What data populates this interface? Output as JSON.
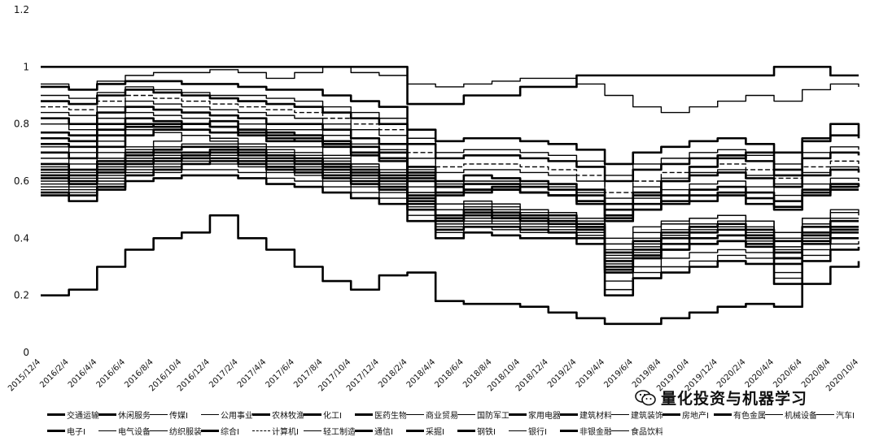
{
  "chart_data": {
    "type": "line",
    "title": "",
    "xlabel": "",
    "ylabel": "",
    "ylim": [
      0,
      1.2
    ],
    "y_ticks": [
      "0",
      "0.2",
      "0.4",
      "0.6",
      "0.8",
      "1",
      "1.2"
    ],
    "x_ticks": [
      "2015/12/4",
      "2016/2/4",
      "2016/4/4",
      "2016/6/4",
      "2016/8/4",
      "2016/10/4",
      "2016/12/4",
      "2017/2/4",
      "2017/4/4",
      "2017/6/4",
      "2017/8/4",
      "2017/10/4",
      "2017/12/4",
      "2018/2/4",
      "2018/4/4",
      "2018/6/4",
      "2018/8/4",
      "2018/10/4",
      "2018/12/4",
      "2019/2/4",
      "2019/4/4",
      "2019/6/4",
      "2019/8/4",
      "2019/10/4",
      "2019/12/4",
      "2020/2/4",
      "2020/4/4",
      "2020/6/4",
      "2020/8/4",
      "2020/10/4"
    ],
    "grid": false,
    "legend_position": "bottom",
    "series": [
      {
        "name": "交通运输I",
        "values": [
          0.75,
          0.74,
          0.78,
          0.8,
          0.79,
          0.78,
          0.77,
          0.76,
          0.74,
          0.75,
          0.73,
          0.7,
          0.68,
          0.62,
          0.58,
          0.56,
          0.57,
          0.56,
          0.55,
          0.52,
          0.47,
          0.5,
          0.52,
          0.53,
          0.55,
          0.52,
          0.5,
          0.56,
          0.58,
          0.58
        ]
      },
      {
        "name": "休闲服务I",
        "values": [
          0.7,
          0.68,
          0.72,
          0.76,
          0.78,
          0.8,
          0.81,
          0.78,
          0.77,
          0.76,
          0.73,
          0.7,
          0.68,
          0.6,
          0.55,
          0.57,
          0.58,
          0.56,
          0.55,
          0.53,
          0.5,
          0.55,
          0.6,
          0.65,
          0.68,
          0.7,
          0.62,
          0.75,
          0.8,
          0.76
        ]
      },
      {
        "name": "传媒I",
        "values": [
          0.72,
          0.7,
          0.74,
          0.78,
          0.77,
          0.76,
          0.75,
          0.73,
          0.72,
          0.72,
          0.69,
          0.66,
          0.64,
          0.58,
          0.52,
          0.53,
          0.52,
          0.5,
          0.49,
          0.47,
          0.4,
          0.44,
          0.46,
          0.47,
          0.48,
          0.46,
          0.42,
          0.47,
          0.5,
          0.48
        ]
      },
      {
        "name": "公用事业I",
        "values": [
          0.68,
          0.66,
          0.7,
          0.72,
          0.74,
          0.76,
          0.74,
          0.73,
          0.71,
          0.7,
          0.68,
          0.66,
          0.63,
          0.56,
          0.5,
          0.51,
          0.5,
          0.49,
          0.48,
          0.46,
          0.34,
          0.38,
          0.41,
          0.43,
          0.44,
          0.42,
          0.36,
          0.44,
          0.46,
          0.46
        ]
      },
      {
        "name": "农林牧渔I",
        "values": [
          0.66,
          0.64,
          0.67,
          0.7,
          0.71,
          0.72,
          0.72,
          0.71,
          0.69,
          0.68,
          0.66,
          0.64,
          0.62,
          0.55,
          0.48,
          0.5,
          0.49,
          0.48,
          0.48,
          0.45,
          0.32,
          0.36,
          0.4,
          0.42,
          0.43,
          0.41,
          0.35,
          0.42,
          0.44,
          0.44
        ]
      },
      {
        "name": "化工I",
        "values": [
          0.64,
          0.62,
          0.66,
          0.69,
          0.7,
          0.7,
          0.71,
          0.7,
          0.68,
          0.67,
          0.65,
          0.63,
          0.61,
          0.54,
          0.47,
          0.49,
          0.48,
          0.47,
          0.46,
          0.44,
          0.3,
          0.34,
          0.38,
          0.4,
          0.41,
          0.4,
          0.33,
          0.41,
          0.43,
          0.43
        ]
      },
      {
        "name": "医药生物I",
        "values": [
          0.62,
          0.6,
          0.64,
          0.67,
          0.68,
          0.69,
          0.7,
          0.69,
          0.67,
          0.66,
          0.64,
          0.62,
          0.6,
          0.53,
          0.46,
          0.48,
          0.47,
          0.46,
          0.45,
          0.43,
          0.28,
          0.33,
          0.36,
          0.38,
          0.39,
          0.38,
          0.31,
          0.39,
          0.42,
          0.42
        ]
      },
      {
        "name": "商业贸易I",
        "values": [
          0.6,
          0.58,
          0.62,
          0.65,
          0.66,
          0.68,
          0.69,
          0.68,
          0.66,
          0.65,
          0.63,
          0.61,
          0.59,
          0.52,
          0.45,
          0.47,
          0.46,
          0.45,
          0.44,
          0.42,
          0.25,
          0.3,
          0.33,
          0.35,
          0.36,
          0.35,
          0.28,
          0.36,
          0.4,
          0.4
        ]
      },
      {
        "name": "国防军工I",
        "values": [
          0.58,
          0.56,
          0.6,
          0.63,
          0.65,
          0.67,
          0.68,
          0.67,
          0.65,
          0.64,
          0.62,
          0.6,
          0.58,
          0.51,
          0.44,
          0.45,
          0.45,
          0.44,
          0.43,
          0.41,
          0.22,
          0.28,
          0.3,
          0.32,
          0.34,
          0.33,
          0.26,
          0.34,
          0.38,
          0.39
        ]
      },
      {
        "name": "家用电器I",
        "values": [
          0.56,
          0.55,
          0.58,
          0.62,
          0.64,
          0.66,
          0.67,
          0.66,
          0.64,
          0.63,
          0.61,
          0.59,
          0.57,
          0.5,
          0.43,
          0.44,
          0.44,
          0.43,
          0.42,
          0.4,
          0.2,
          0.26,
          0.28,
          0.3,
          0.32,
          0.31,
          0.24,
          0.32,
          0.36,
          0.37
        ]
      },
      {
        "name": "建筑材料I",
        "values": [
          0.82,
          0.8,
          0.84,
          0.86,
          0.85,
          0.84,
          0.83,
          0.82,
          0.8,
          0.8,
          0.78,
          0.75,
          0.73,
          0.65,
          0.6,
          0.62,
          0.61,
          0.6,
          0.59,
          0.57,
          0.52,
          0.56,
          0.6,
          0.62,
          0.63,
          0.61,
          0.58,
          0.62,
          0.64,
          0.63
        ]
      },
      {
        "name": "建筑装饰I",
        "values": [
          0.8,
          0.78,
          0.82,
          0.84,
          0.83,
          0.82,
          0.81,
          0.8,
          0.78,
          0.78,
          0.76,
          0.73,
          0.71,
          0.64,
          0.59,
          0.6,
          0.6,
          0.59,
          0.58,
          0.56,
          0.5,
          0.54,
          0.57,
          0.59,
          0.6,
          0.58,
          0.55,
          0.59,
          0.61,
          0.6
        ]
      },
      {
        "name": "房地产I",
        "values": [
          0.77,
          0.76,
          0.8,
          0.82,
          0.81,
          0.8,
          0.79,
          0.78,
          0.76,
          0.76,
          0.74,
          0.72,
          0.7,
          0.63,
          0.58,
          0.59,
          0.59,
          0.58,
          0.57,
          0.55,
          0.48,
          0.52,
          0.55,
          0.57,
          0.58,
          0.56,
          0.53,
          0.57,
          0.59,
          0.58
        ]
      },
      {
        "name": "有色金属I",
        "values": [
          0.73,
          0.72,
          0.76,
          0.79,
          0.8,
          0.8,
          0.79,
          0.77,
          0.75,
          0.74,
          0.72,
          0.69,
          0.67,
          0.61,
          0.56,
          0.57,
          0.57,
          0.56,
          0.55,
          0.53,
          0.46,
          0.5,
          0.53,
          0.55,
          0.56,
          0.54,
          0.51,
          0.55,
          0.57,
          0.57
        ]
      },
      {
        "name": "机械设备I",
        "values": [
          0.65,
          0.63,
          0.68,
          0.71,
          0.72,
          0.73,
          0.73,
          0.72,
          0.7,
          0.69,
          0.67,
          0.65,
          0.63,
          0.56,
          0.5,
          0.52,
          0.51,
          0.5,
          0.49,
          0.47,
          0.38,
          0.42,
          0.45,
          0.47,
          0.48,
          0.46,
          0.42,
          0.47,
          0.49,
          0.49
        ]
      },
      {
        "name": "汽车I",
        "values": [
          0.63,
          0.61,
          0.65,
          0.68,
          0.69,
          0.7,
          0.7,
          0.69,
          0.67,
          0.66,
          0.64,
          0.62,
          0.6,
          0.54,
          0.48,
          0.5,
          0.49,
          0.48,
          0.47,
          0.45,
          0.36,
          0.4,
          0.43,
          0.45,
          0.46,
          0.44,
          0.4,
          0.45,
          0.47,
          0.47
        ]
      },
      {
        "name": "电子I",
        "values": [
          0.61,
          0.59,
          0.63,
          0.66,
          0.67,
          0.68,
          0.68,
          0.67,
          0.65,
          0.64,
          0.62,
          0.6,
          0.58,
          0.52,
          0.46,
          0.48,
          0.47,
          0.46,
          0.46,
          0.44,
          0.35,
          0.39,
          0.42,
          0.44,
          0.45,
          0.43,
          0.39,
          0.44,
          0.46,
          0.46
        ]
      },
      {
        "name": "电气设备I",
        "values": [
          0.59,
          0.57,
          0.61,
          0.64,
          0.65,
          0.66,
          0.66,
          0.65,
          0.63,
          0.62,
          0.6,
          0.58,
          0.56,
          0.5,
          0.44,
          0.46,
          0.45,
          0.44,
          0.44,
          0.42,
          0.33,
          0.37,
          0.4,
          0.42,
          0.43,
          0.41,
          0.37,
          0.42,
          0.44,
          0.44
        ]
      },
      {
        "name": "纺织服装I",
        "values": [
          0.57,
          0.55,
          0.59,
          0.62,
          0.63,
          0.64,
          0.64,
          0.63,
          0.61,
          0.6,
          0.58,
          0.56,
          0.54,
          0.48,
          0.42,
          0.44,
          0.43,
          0.42,
          0.42,
          0.4,
          0.31,
          0.35,
          0.38,
          0.4,
          0.41,
          0.39,
          0.35,
          0.4,
          0.42,
          0.42
        ]
      },
      {
        "name": "综合I",
        "values": [
          0.55,
          0.53,
          0.57,
          0.6,
          0.61,
          0.62,
          0.62,
          0.61,
          0.59,
          0.58,
          0.56,
          0.54,
          0.52,
          0.46,
          0.4,
          0.42,
          0.41,
          0.4,
          0.4,
          0.38,
          0.29,
          0.33,
          0.36,
          0.38,
          0.39,
          0.37,
          0.33,
          0.38,
          0.4,
          0.4
        ]
      },
      {
        "name": "计算机I",
        "values": [
          0.86,
          0.85,
          0.88,
          0.9,
          0.89,
          0.88,
          0.87,
          0.86,
          0.85,
          0.84,
          0.82,
          0.8,
          0.78,
          0.7,
          0.65,
          0.66,
          0.66,
          0.65,
          0.64,
          0.62,
          0.56,
          0.6,
          0.63,
          0.65,
          0.66,
          0.64,
          0.61,
          0.65,
          0.67,
          0.66
        ]
      },
      {
        "name": "轻工制造I",
        "values": [
          0.84,
          0.83,
          0.86,
          0.88,
          0.87,
          0.86,
          0.85,
          0.84,
          0.83,
          0.82,
          0.8,
          0.78,
          0.76,
          0.68,
          0.63,
          0.64,
          0.64,
          0.63,
          0.62,
          0.6,
          0.54,
          0.58,
          0.61,
          0.63,
          0.64,
          0.62,
          0.59,
          0.63,
          0.65,
          0.64
        ]
      },
      {
        "name": "通信I",
        "values": [
          0.93,
          0.92,
          0.94,
          0.95,
          0.95,
          0.94,
          0.94,
          0.93,
          0.92,
          0.92,
          0.9,
          0.88,
          0.86,
          0.78,
          0.74,
          0.75,
          0.75,
          0.74,
          0.73,
          0.71,
          0.66,
          0.7,
          0.72,
          0.74,
          0.75,
          0.73,
          0.7,
          0.74,
          0.76,
          0.75
        ]
      },
      {
        "name": "采掘I",
        "values": [
          0.88,
          0.87,
          0.9,
          0.92,
          0.91,
          0.9,
          0.89,
          0.88,
          0.87,
          0.86,
          0.84,
          0.82,
          0.8,
          0.73,
          0.68,
          0.69,
          0.69,
          0.68,
          0.67,
          0.65,
          0.6,
          0.64,
          0.66,
          0.68,
          0.69,
          0.67,
          0.64,
          0.68,
          0.7,
          0.69
        ]
      },
      {
        "name": "钢铁I",
        "values": [
          1.0,
          1.0,
          1.0,
          1.0,
          1.0,
          1.0,
          1.0,
          1.0,
          1.0,
          1.0,
          1.0,
          1.0,
          1.0,
          0.87,
          0.87,
          0.9,
          0.9,
          0.93,
          0.93,
          0.97,
          0.97,
          0.97,
          0.97,
          0.97,
          0.97,
          0.97,
          1.0,
          1.0,
          0.97,
          0.97
        ]
      },
      {
        "name": "银行I",
        "values": [
          0.94,
          0.92,
          0.95,
          0.97,
          0.98,
          0.98,
          0.99,
          0.98,
          0.96,
          0.98,
          1.0,
          0.98,
          0.97,
          0.94,
          0.93,
          0.94,
          0.95,
          0.96,
          0.96,
          0.94,
          0.9,
          0.86,
          0.84,
          0.86,
          0.88,
          0.9,
          0.88,
          0.92,
          0.94,
          0.93
        ]
      },
      {
        "name": "非银金融I",
        "values": [
          0.2,
          0.22,
          0.3,
          0.36,
          0.4,
          0.42,
          0.48,
          0.4,
          0.36,
          0.3,
          0.25,
          0.22,
          0.27,
          0.28,
          0.18,
          0.17,
          0.17,
          0.16,
          0.14,
          0.12,
          0.1,
          0.1,
          0.12,
          0.14,
          0.16,
          0.17,
          0.16,
          0.24,
          0.3,
          0.32
        ]
      },
      {
        "name": "食品饮料I",
        "values": [
          0.9,
          0.89,
          0.91,
          0.93,
          0.92,
          0.91,
          0.9,
          0.9,
          0.89,
          0.88,
          0.86,
          0.84,
          0.82,
          0.75,
          0.7,
          0.71,
          0.71,
          0.7,
          0.69,
          0.67,
          0.62,
          0.66,
          0.68,
          0.7,
          0.71,
          0.69,
          0.66,
          0.7,
          0.72,
          0.71
        ]
      }
    ]
  },
  "watermark": {
    "text": "量化投资与机器学习",
    "icon": "wechat-icon"
  }
}
